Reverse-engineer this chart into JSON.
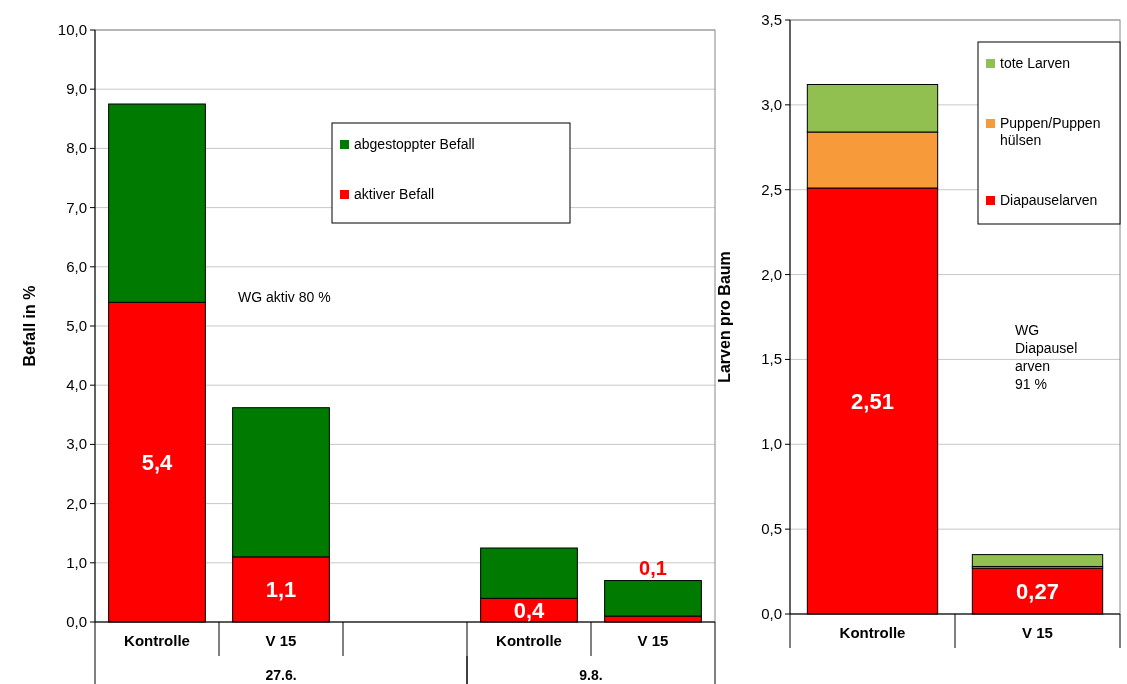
{
  "chart_data": [
    {
      "type": "bar",
      "stacked": true,
      "ylabel": "Befall in %",
      "categories": [
        "Kontrolle",
        "V 15",
        null,
        "Kontrolle",
        "V 15"
      ],
      "series": [
        {
          "name": "aktiver Befall",
          "color": "#ff0000",
          "values": [
            5.4,
            1.1,
            null,
            0.4,
            0.1
          ],
          "value_labels": [
            "5,4",
            "1,1",
            null,
            "0,4",
            "0,1"
          ]
        },
        {
          "name": "abgestoppter Befall",
          "color": "#007a00",
          "values": [
            3.35,
            2.52,
            null,
            0.85,
            0.6
          ]
        }
      ],
      "ylim": [
        0,
        10
      ],
      "yticks": [
        {
          "value": 0,
          "label": "0,0"
        },
        {
          "value": 1,
          "label": "1,0"
        },
        {
          "value": 2,
          "label": "2,0"
        },
        {
          "value": 3,
          "label": "3,0"
        },
        {
          "value": 4,
          "label": "4,0"
        },
        {
          "value": 5,
          "label": "5,0"
        },
        {
          "value": 6,
          "label": "6,0"
        },
        {
          "value": 7,
          "label": "7,0"
        },
        {
          "value": 8,
          "label": "8,0"
        },
        {
          "value": 9,
          "label": "9,0"
        },
        {
          "value": 10,
          "label": "10,0"
        }
      ],
      "grid": "y",
      "legend": "top right",
      "annotations": [
        "27.6.",
        "9.8.",
        "WG aktiv 80 %"
      ]
    },
    {
      "type": "bar",
      "stacked": true,
      "ylabel": "Larven pro Baum",
      "categories": [
        "Kontrolle",
        "V 15"
      ],
      "series": [
        {
          "name": "Diapauselarven",
          "color": "#ff0000",
          "values": [
            2.51,
            0.27
          ],
          "value_labels": [
            "2,51",
            "0,27"
          ]
        },
        {
          "name": "Puppen/Puppen\nhülsen",
          "color": "#f79a3a",
          "values": [
            0.33,
            0.01
          ]
        },
        {
          "name": "tote Larven",
          "color": "#92c050",
          "values": [
            0.28,
            0.07
          ]
        }
      ],
      "ylim": [
        0,
        3.5
      ],
      "yticks": [
        {
          "value": 0,
          "label": "0,0"
        },
        {
          "value": 0.5,
          "label": "0,5"
        },
        {
          "value": 1,
          "label": "1,0"
        },
        {
          "value": 1.5,
          "label": "1,5"
        },
        {
          "value": 2,
          "label": "2,0"
        },
        {
          "value": 2.5,
          "label": "2,5"
        },
        {
          "value": 3,
          "label": "3,0"
        },
        {
          "value": 3.5,
          "label": "3,5"
        }
      ],
      "grid": "y",
      "legend": "top right",
      "annotations": [
        "WG\nDiapausel\narven\n91 %"
      ]
    }
  ]
}
